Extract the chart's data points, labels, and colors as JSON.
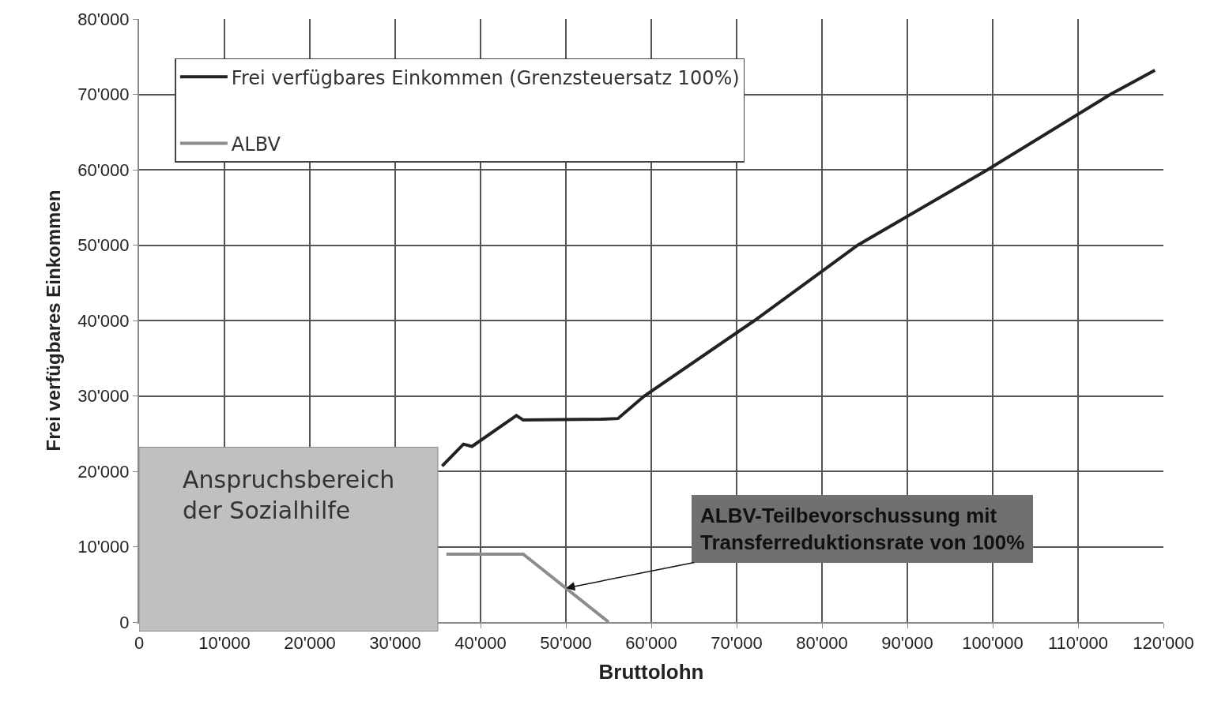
{
  "chart_data": {
    "type": "line",
    "xlabel": "Bruttolohn",
    "ylabel": "Frei verfügbares Einkommen",
    "series": [
      {
        "name": "Frei verfügbares Einkommen (Grenzsteuersatz 100%)",
        "color": "#222222",
        "x": [
          35500,
          38000,
          39000,
          44200,
          45000,
          54100,
          56100,
          59200,
          72100,
          84200,
          99400,
          113800,
          119000
        ],
        "values": [
          20700,
          23600,
          23300,
          27400,
          26800,
          26900,
          27000,
          30000,
          40000,
          50000,
          60000,
          70000,
          73200
        ]
      },
      {
        "name": "ALBV",
        "color": "#8c8c8c",
        "x": [
          36000,
          45000,
          55000
        ],
        "values": [
          9000,
          9000,
          0
        ]
      }
    ],
    "xlim": [
      0,
      120000
    ],
    "ylim": [
      0,
      80000
    ],
    "xticks": [
      0,
      {
        "value": 10000,
        "label": "10'000"
      },
      {
        "value": 20000,
        "label": "20'000"
      },
      {
        "value": 30000,
        "label": "30'000"
      },
      {
        "value": 40000,
        "label": "40'000"
      },
      {
        "value": 50000,
        "label": "50'000"
      },
      {
        "value": 60000,
        "label": "60'000"
      },
      {
        "value": 70000,
        "label": "70'000"
      },
      {
        "value": 80000,
        "label": "80'000"
      },
      {
        "value": 90000,
        "label": "90'000"
      },
      {
        "value": 100000,
        "label": "100'000"
      },
      {
        "value": 110000,
        "label": "110'000"
      },
      {
        "value": 120000,
        "label": "120'000"
      }
    ],
    "yticks": [
      0,
      {
        "value": 10000,
        "label": "10'000"
      },
      {
        "value": 20000,
        "label": "20'000"
      },
      {
        "value": 30000,
        "label": "30'000"
      },
      {
        "value": 40000,
        "label": "40'000"
      },
      {
        "value": 50000,
        "label": "50'000"
      },
      {
        "value": 60000,
        "label": "60'000"
      },
      {
        "value": 70000,
        "label": "70'000"
      },
      {
        "value": 80000,
        "label": "80'000"
      }
    ],
    "bands": [
      {
        "axis": "x",
        "from": 0,
        "to": 35000,
        "label": "Anspruchsbereich der Sozialhilfe",
        "color": "#c0c0c0"
      }
    ],
    "annotations": [
      {
        "text": "ALBV-Teilbevorschussung mit\nTransferreduktionsrate von 100%",
        "x": 50000,
        "y": 4500
      }
    ],
    "grid": true,
    "legend": "top left",
    "marker": "none",
    "line_style": "solid"
  }
}
